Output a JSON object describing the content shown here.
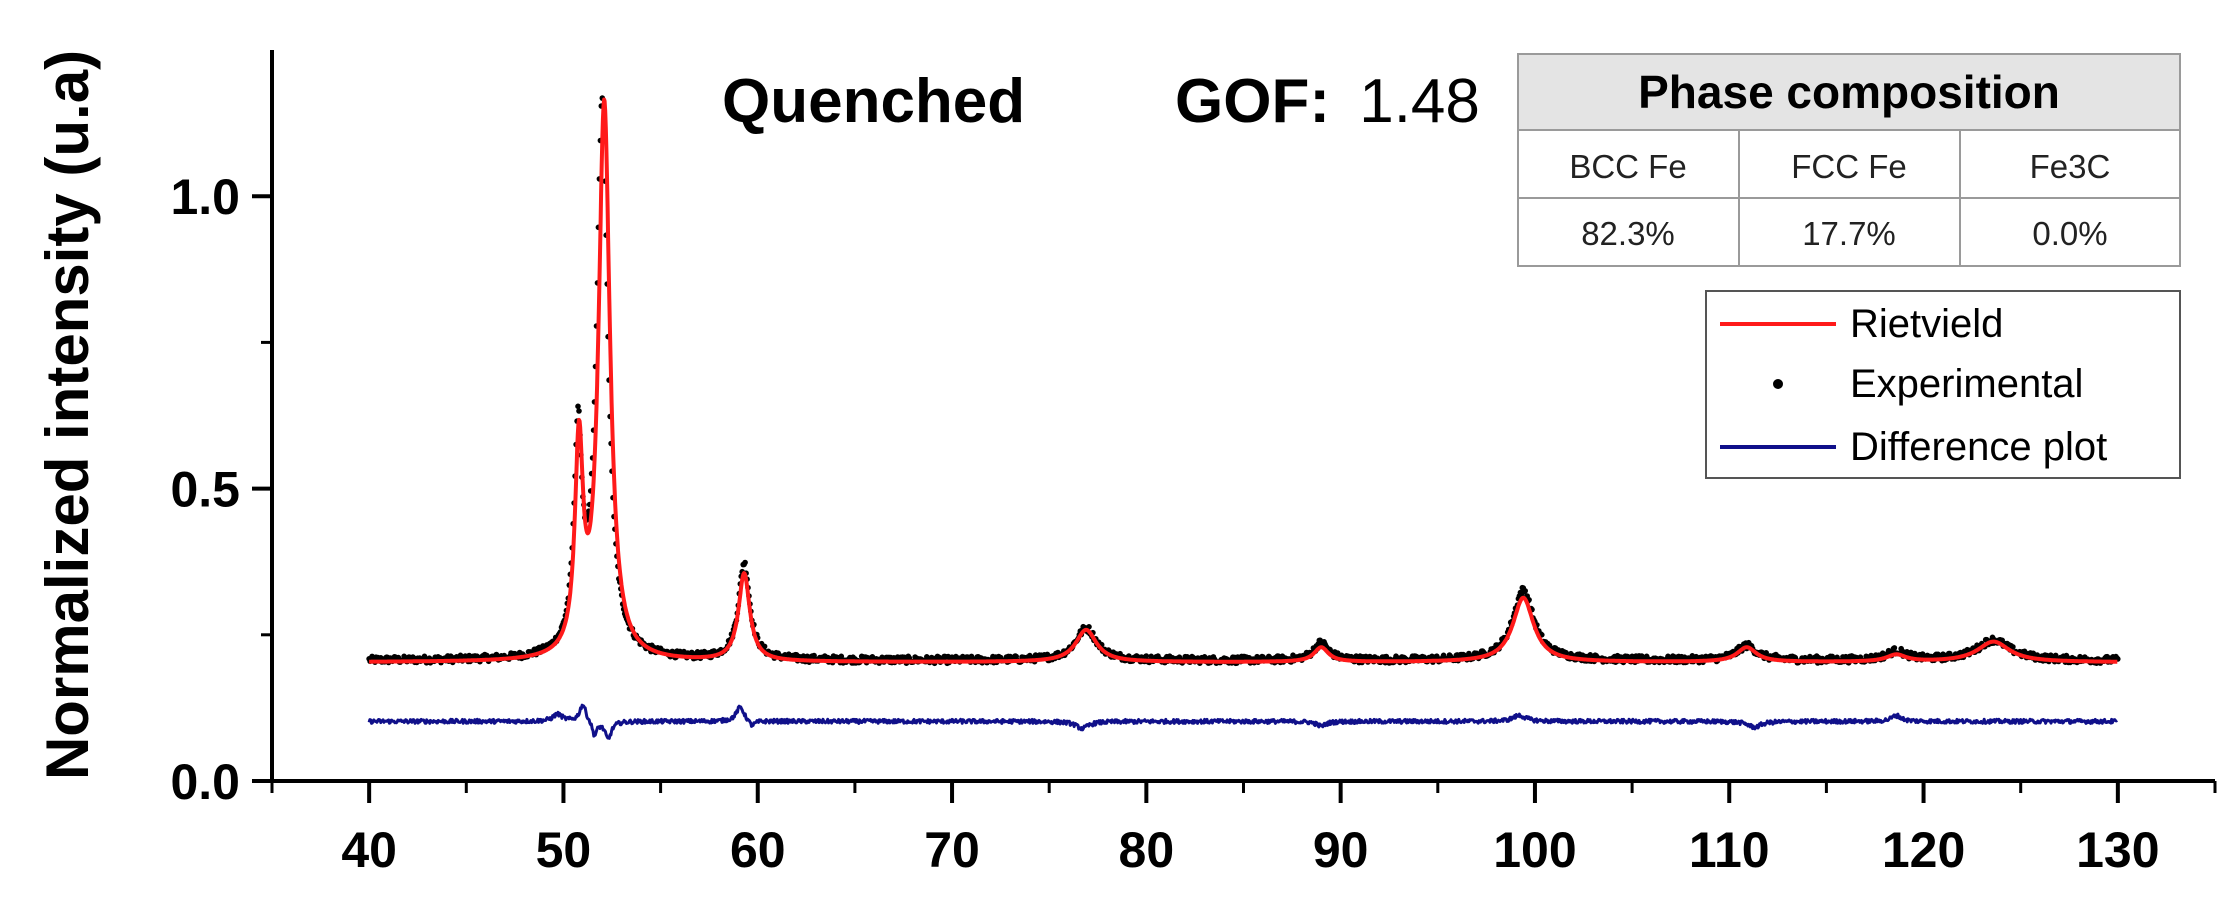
{
  "chart_data": {
    "type": "line",
    "title": "Quenched",
    "gof_label": "GOF:",
    "gof_value": "1.48",
    "ylabel": "Normalized intensity (u.a)",
    "xlabel": "",
    "xlim": [
      35,
      135
    ],
    "ylim": [
      0,
      1.25
    ],
    "x_ticks": [
      40,
      50,
      60,
      70,
      80,
      90,
      100,
      110,
      120,
      130
    ],
    "y_ticks": [
      0.0,
      0.5,
      1.0
    ],
    "y_tick_labels": [
      "0.0",
      "0.5",
      "1.0"
    ],
    "x_range": [
      40,
      130
    ],
    "grid": false,
    "legend_position": "right",
    "series": [
      {
        "name": "Rietvield",
        "style": "line",
        "color": "#ff1a1a",
        "baseline": 0.203,
        "peaks": [
          {
            "x": 50.8,
            "height": 0.35,
            "width": 0.25
          },
          {
            "x": 52.1,
            "height": 0.95,
            "width": 0.35
          },
          {
            "x": 59.3,
            "height": 0.15,
            "width": 0.35
          },
          {
            "x": 76.9,
            "height": 0.055,
            "width": 0.65
          },
          {
            "x": 89.0,
            "height": 0.025,
            "width": 0.45
          },
          {
            "x": 99.4,
            "height": 0.11,
            "width": 0.65
          },
          {
            "x": 110.9,
            "height": 0.025,
            "width": 0.6
          },
          {
            "x": 118.6,
            "height": 0.012,
            "width": 0.6
          },
          {
            "x": 123.6,
            "height": 0.035,
            "width": 1.0
          }
        ]
      },
      {
        "name": "Experimental",
        "style": "points",
        "color": "#000000",
        "baseline": 0.206,
        "noise": 0.006,
        "peaks": [
          {
            "x": 50.75,
            "height": 0.36,
            "width": 0.25
          },
          {
            "x": 52.0,
            "height": 0.95,
            "width": 0.35
          },
          {
            "x": 59.3,
            "height": 0.165,
            "width": 0.35
          },
          {
            "x": 76.9,
            "height": 0.055,
            "width": 0.65
          },
          {
            "x": 89.0,
            "height": 0.03,
            "width": 0.45
          },
          {
            "x": 99.4,
            "height": 0.12,
            "width": 0.65
          },
          {
            "x": 110.9,
            "height": 0.025,
            "width": 0.6
          },
          {
            "x": 118.6,
            "height": 0.015,
            "width": 0.6
          },
          {
            "x": 123.6,
            "height": 0.035,
            "width": 1.0
          }
        ]
      },
      {
        "name": "Difference plot",
        "style": "line",
        "color": "#10108a",
        "baseline": 0.102,
        "noise": 0.0035,
        "peaks": [
          {
            "x": 49.7,
            "height": 0.012,
            "width": 0.3
          },
          {
            "x": 51.0,
            "height": 0.03,
            "width": 0.2
          },
          {
            "x": 51.6,
            "height": -0.025,
            "width": 0.15
          },
          {
            "x": 52.3,
            "height": -0.03,
            "width": 0.2
          },
          {
            "x": 59.1,
            "height": 0.025,
            "width": 0.25
          },
          {
            "x": 59.7,
            "height": -0.01,
            "width": 0.2
          },
          {
            "x": 76.7,
            "height": -0.012,
            "width": 0.4
          },
          {
            "x": 89.0,
            "height": -0.008,
            "width": 0.3
          },
          {
            "x": 99.2,
            "height": 0.01,
            "width": 0.4
          },
          {
            "x": 111.3,
            "height": -0.01,
            "width": 0.4
          },
          {
            "x": 118.6,
            "height": 0.01,
            "width": 0.3
          }
        ]
      }
    ],
    "table": {
      "title": "Phase composition",
      "headers": [
        "BCC Fe",
        "FCC Fe",
        "Fe3C"
      ],
      "values": [
        "82.3%",
        "17.7%",
        "0.0%"
      ]
    }
  }
}
